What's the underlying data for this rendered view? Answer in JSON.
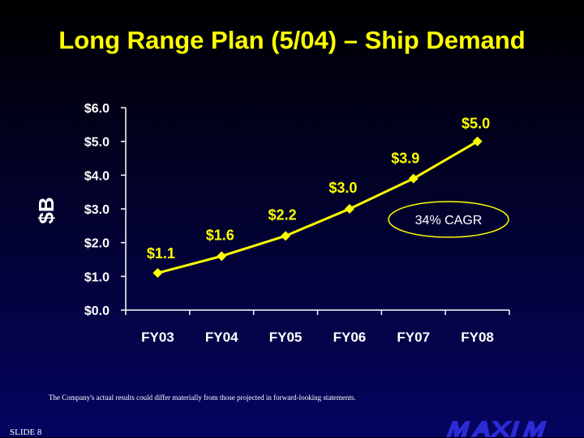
{
  "title": "Long Range Plan (5/04) – Ship Demand",
  "disclaimer": "The Company's actual results could differ materially from those projected in forward-looking statements.",
  "slide_number": "SLIDE 8",
  "logo_text": "MAXIM",
  "colors": {
    "title": "#ffff00",
    "series": "#ffff00",
    "axis": "#ffffff",
    "label": "#ffffff",
    "callout_border": "#ffff00"
  },
  "chart_data": {
    "type": "line",
    "title": "",
    "xlabel": "",
    "ylabel": "$B",
    "ylim": [
      0,
      6
    ],
    "y_ticks": [
      0,
      1,
      2,
      3,
      4,
      5,
      6
    ],
    "y_tick_labels": [
      "$0.0",
      "$1.0",
      "$2.0",
      "$3.0",
      "$4.0",
      "$5.0",
      "$6.0"
    ],
    "categories": [
      "FY03",
      "FY04",
      "FY05",
      "FY06",
      "FY07",
      "FY08"
    ],
    "series": [
      {
        "values": [
          1.1,
          1.6,
          2.2,
          3.0,
          3.9,
          5.0
        ],
        "data_labels": [
          "$1.1",
          "$1.6",
          "$2.2",
          "$3.0",
          "$3.9",
          "$5.0"
        ]
      }
    ],
    "grid": false,
    "marker": "diamond",
    "annotation": "34% CAGR"
  }
}
